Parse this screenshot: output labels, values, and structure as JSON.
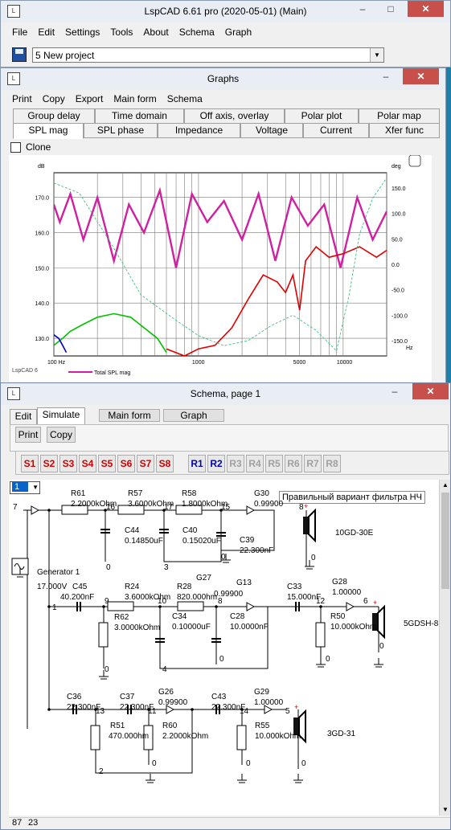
{
  "main": {
    "title": "LspCAD 6.61  pro (2020-05-01) (Main)",
    "menu": [
      "File",
      "Edit",
      "Settings",
      "Tools",
      "About",
      "Schema",
      "Graph"
    ],
    "project": "5 New project"
  },
  "graphs": {
    "title": "Graphs",
    "menu": [
      "Print",
      "Copy",
      "Export",
      "Main form",
      "Schema"
    ],
    "tabs_top": [
      "Group delay",
      "Time domain",
      "Off axis, overlay",
      "Polar plot",
      "Polar map"
    ],
    "tabs_bottom": [
      "SPL mag",
      "SPL phase",
      "Impedance",
      "Voltage",
      "Current",
      "Xfer func"
    ],
    "clone_label": "Clone",
    "legend_label": "Total SPL mag",
    "watermark": "LspCAD 6"
  },
  "chart_data": {
    "type": "line",
    "xscale": "log",
    "xlim": [
      100,
      20000
    ],
    "ylim": [
      125,
      177
    ],
    "y2lim": [
      -180,
      180
    ],
    "ylabel": "dB",
    "y2label": "deg",
    "xunit": "Hz",
    "x_tick_labels": [
      "100 Hz",
      "1000",
      "5000",
      "10000"
    ],
    "y_tick_labels": [
      "130.0",
      "140.0",
      "150.0",
      "160.0",
      "170.0"
    ],
    "y2_tick_labels": [
      "-150.0",
      "-100.0",
      "-50.0",
      "0.0",
      "50.0",
      "100.0",
      "150.0"
    ],
    "grid": true,
    "series": [
      {
        "name": "Total SPL mag",
        "color": "#d020a0",
        "axis": "left",
        "x": [
          100,
          110,
          130,
          160,
          200,
          260,
          330,
          420,
          540,
          700,
          900,
          1150,
          1500,
          2000,
          2600,
          3400,
          4400,
          5700,
          7400,
          9600,
          12500,
          16000,
          20000
        ],
        "y": [
          168,
          163,
          171,
          158,
          170,
          152,
          168,
          160,
          172,
          150,
          171,
          163,
          169,
          158,
          171,
          152,
          170,
          162,
          168,
          150,
          170,
          158,
          166
        ]
      },
      {
        "color": "#e00000",
        "axis": "left",
        "x": [
          600,
          800,
          1000,
          1300,
          1700,
          2200,
          2800,
          3500,
          4000,
          4500,
          5000,
          5500,
          6500,
          8000,
          10000,
          13000,
          17000,
          20000
        ],
        "y": [
          127,
          125,
          127,
          128,
          133,
          141,
          148,
          146,
          143,
          148,
          138,
          152,
          156,
          153,
          154,
          156,
          153,
          155
        ]
      },
      {
        "color": "#00c000",
        "axis": "left",
        "x": [
          100,
          115,
          130,
          160,
          200,
          260,
          340,
          420,
          520,
          600
        ],
        "y": [
          128,
          130,
          132,
          134,
          136,
          137,
          136,
          133,
          130,
          126
        ]
      },
      {
        "color": "#0000c0",
        "axis": "left",
        "x": [
          100,
          108,
          115,
          122
        ],
        "y": [
          131,
          130,
          128,
          126
        ]
      },
      {
        "color": "#40c080",
        "axis": "right",
        "dash": true,
        "x": [
          100,
          150,
          250,
          400,
          700,
          1000,
          1500,
          2200,
          3200,
          4500,
          6500,
          9000,
          11000,
          13000,
          16000,
          20000
        ],
        "y": [
          160,
          140,
          40,
          -60,
          -110,
          -140,
          -160,
          -150,
          -120,
          -100,
          -130,
          -170,
          -60,
          60,
          130,
          170
        ]
      }
    ]
  },
  "schema": {
    "title": "Schema, page 1",
    "tabs": [
      "Edit",
      "Simulate"
    ],
    "buttons": {
      "main_form": "Main form",
      "graph": "Graph",
      "print": "Print",
      "copy": "Copy"
    },
    "s_buttons": [
      "S1",
      "S2",
      "S3",
      "S4",
      "S5",
      "S6",
      "S7",
      "S8"
    ],
    "r_buttons": [
      "R1",
      "R2",
      "R3",
      "R4",
      "R5",
      "R6",
      "R7",
      "R8"
    ],
    "selector": "1",
    "note": "Правильный вариант фильтра НЧ",
    "status": [
      "87",
      "23"
    ],
    "labels": [
      [
        "R61",
        77,
        10
      ],
      [
        "2.2000kOhm",
        77,
        23
      ],
      [
        "R57",
        148,
        10
      ],
      [
        "3.6000kOhm",
        148,
        23
      ],
      [
        "R58",
        215,
        10
      ],
      [
        "1.8000kOhm",
        215,
        23
      ],
      [
        "G30",
        305,
        10
      ],
      [
        "0.99900",
        305,
        23
      ],
      [
        "16",
        121,
        27
      ],
      [
        "17",
        193,
        27
      ],
      [
        "15",
        264,
        27
      ],
      [
        "7",
        5,
        27
      ],
      [
        "8",
        361,
        27
      ],
      [
        "C44",
        144,
        56
      ],
      [
        "0.14850uF",
        144,
        69
      ],
      [
        "C40",
        216,
        56
      ],
      [
        "0.15020uF",
        216,
        69
      ],
      [
        "C39",
        287,
        68
      ],
      [
        "22.300nF",
        287,
        81
      ],
      [
        "10GD-30E",
        406,
        59
      ],
      [
        "0",
        121,
        102
      ],
      [
        "3",
        193,
        102
      ],
      [
        "0",
        264,
        89
      ],
      [
        "0",
        376,
        90
      ],
      [
        "Generator 1",
        35,
        108
      ],
      [
        "17.000V",
        35,
        126
      ],
      [
        "G13",
        283,
        121
      ],
      [
        "C45",
        79,
        126
      ],
      [
        "40.200nF",
        64,
        139
      ],
      [
        "R24",
        144,
        126
      ],
      [
        "3.6000kOhm",
        144,
        139
      ],
      [
        "R28",
        209,
        126
      ],
      [
        "820.000hm",
        209,
        139
      ],
      [
        "G27",
        233,
        115
      ],
      [
        "0.99900",
        255,
        135
      ],
      [
        "C33",
        346,
        126
      ],
      [
        "15.000nF",
        346,
        139
      ],
      [
        "G28",
        402,
        120
      ],
      [
        "1.00000",
        402,
        133
      ],
      [
        "1",
        54,
        152
      ],
      [
        "9",
        119,
        144
      ],
      [
        "10",
        185,
        144
      ],
      [
        "8",
        260,
        144
      ],
      [
        "12",
        382,
        144
      ],
      [
        "6",
        441,
        144
      ],
      [
        "R62",
        131,
        164
      ],
      [
        "3.0000kOhm",
        131,
        177
      ],
      [
        "C34",
        203,
        163
      ],
      [
        "0.10000uF",
        203,
        176
      ],
      [
        "C28",
        275,
        163
      ],
      [
        "10.0000nF",
        275,
        176
      ],
      [
        "R50",
        400,
        163
      ],
      [
        "10.000kOhm",
        400,
        176
      ],
      [
        "5GDSH-8",
        491,
        172
      ],
      [
        "0",
        119,
        229
      ],
      [
        "4",
        191,
        229
      ],
      [
        "0",
        262,
        216
      ],
      [
        "0",
        394,
        216
      ],
      [
        "0",
        461,
        200
      ],
      [
        "C36",
        72,
        263
      ],
      [
        "22.300nF",
        72,
        276
      ],
      [
        "C37",
        138,
        263
      ],
      [
        "22.300nF",
        138,
        276
      ],
      [
        "G26",
        186,
        257
      ],
      [
        "0.99900",
        186,
        270
      ],
      [
        "C43",
        252,
        263
      ],
      [
        "22.300nF",
        252,
        276
      ],
      [
        "G29",
        305,
        257
      ],
      [
        "1.00000",
        305,
        270
      ],
      [
        "13",
        108,
        281
      ],
      [
        "11",
        173,
        281
      ],
      [
        "14",
        287,
        281
      ],
      [
        "5",
        344,
        281
      ],
      [
        "R51",
        126,
        299
      ],
      [
        "470.000hm",
        124,
        312
      ],
      [
        "R60",
        191,
        299
      ],
      [
        "2.2000kOhm",
        191,
        312
      ],
      [
        "R55",
        306,
        299
      ],
      [
        "10.000kOhm",
        306,
        312
      ],
      [
        "3GD-31",
        396,
        309
      ],
      [
        "2",
        112,
        356
      ],
      [
        "0",
        178,
        346
      ],
      [
        "0",
        295,
        346
      ],
      [
        "0",
        364,
        346
      ]
    ]
  }
}
